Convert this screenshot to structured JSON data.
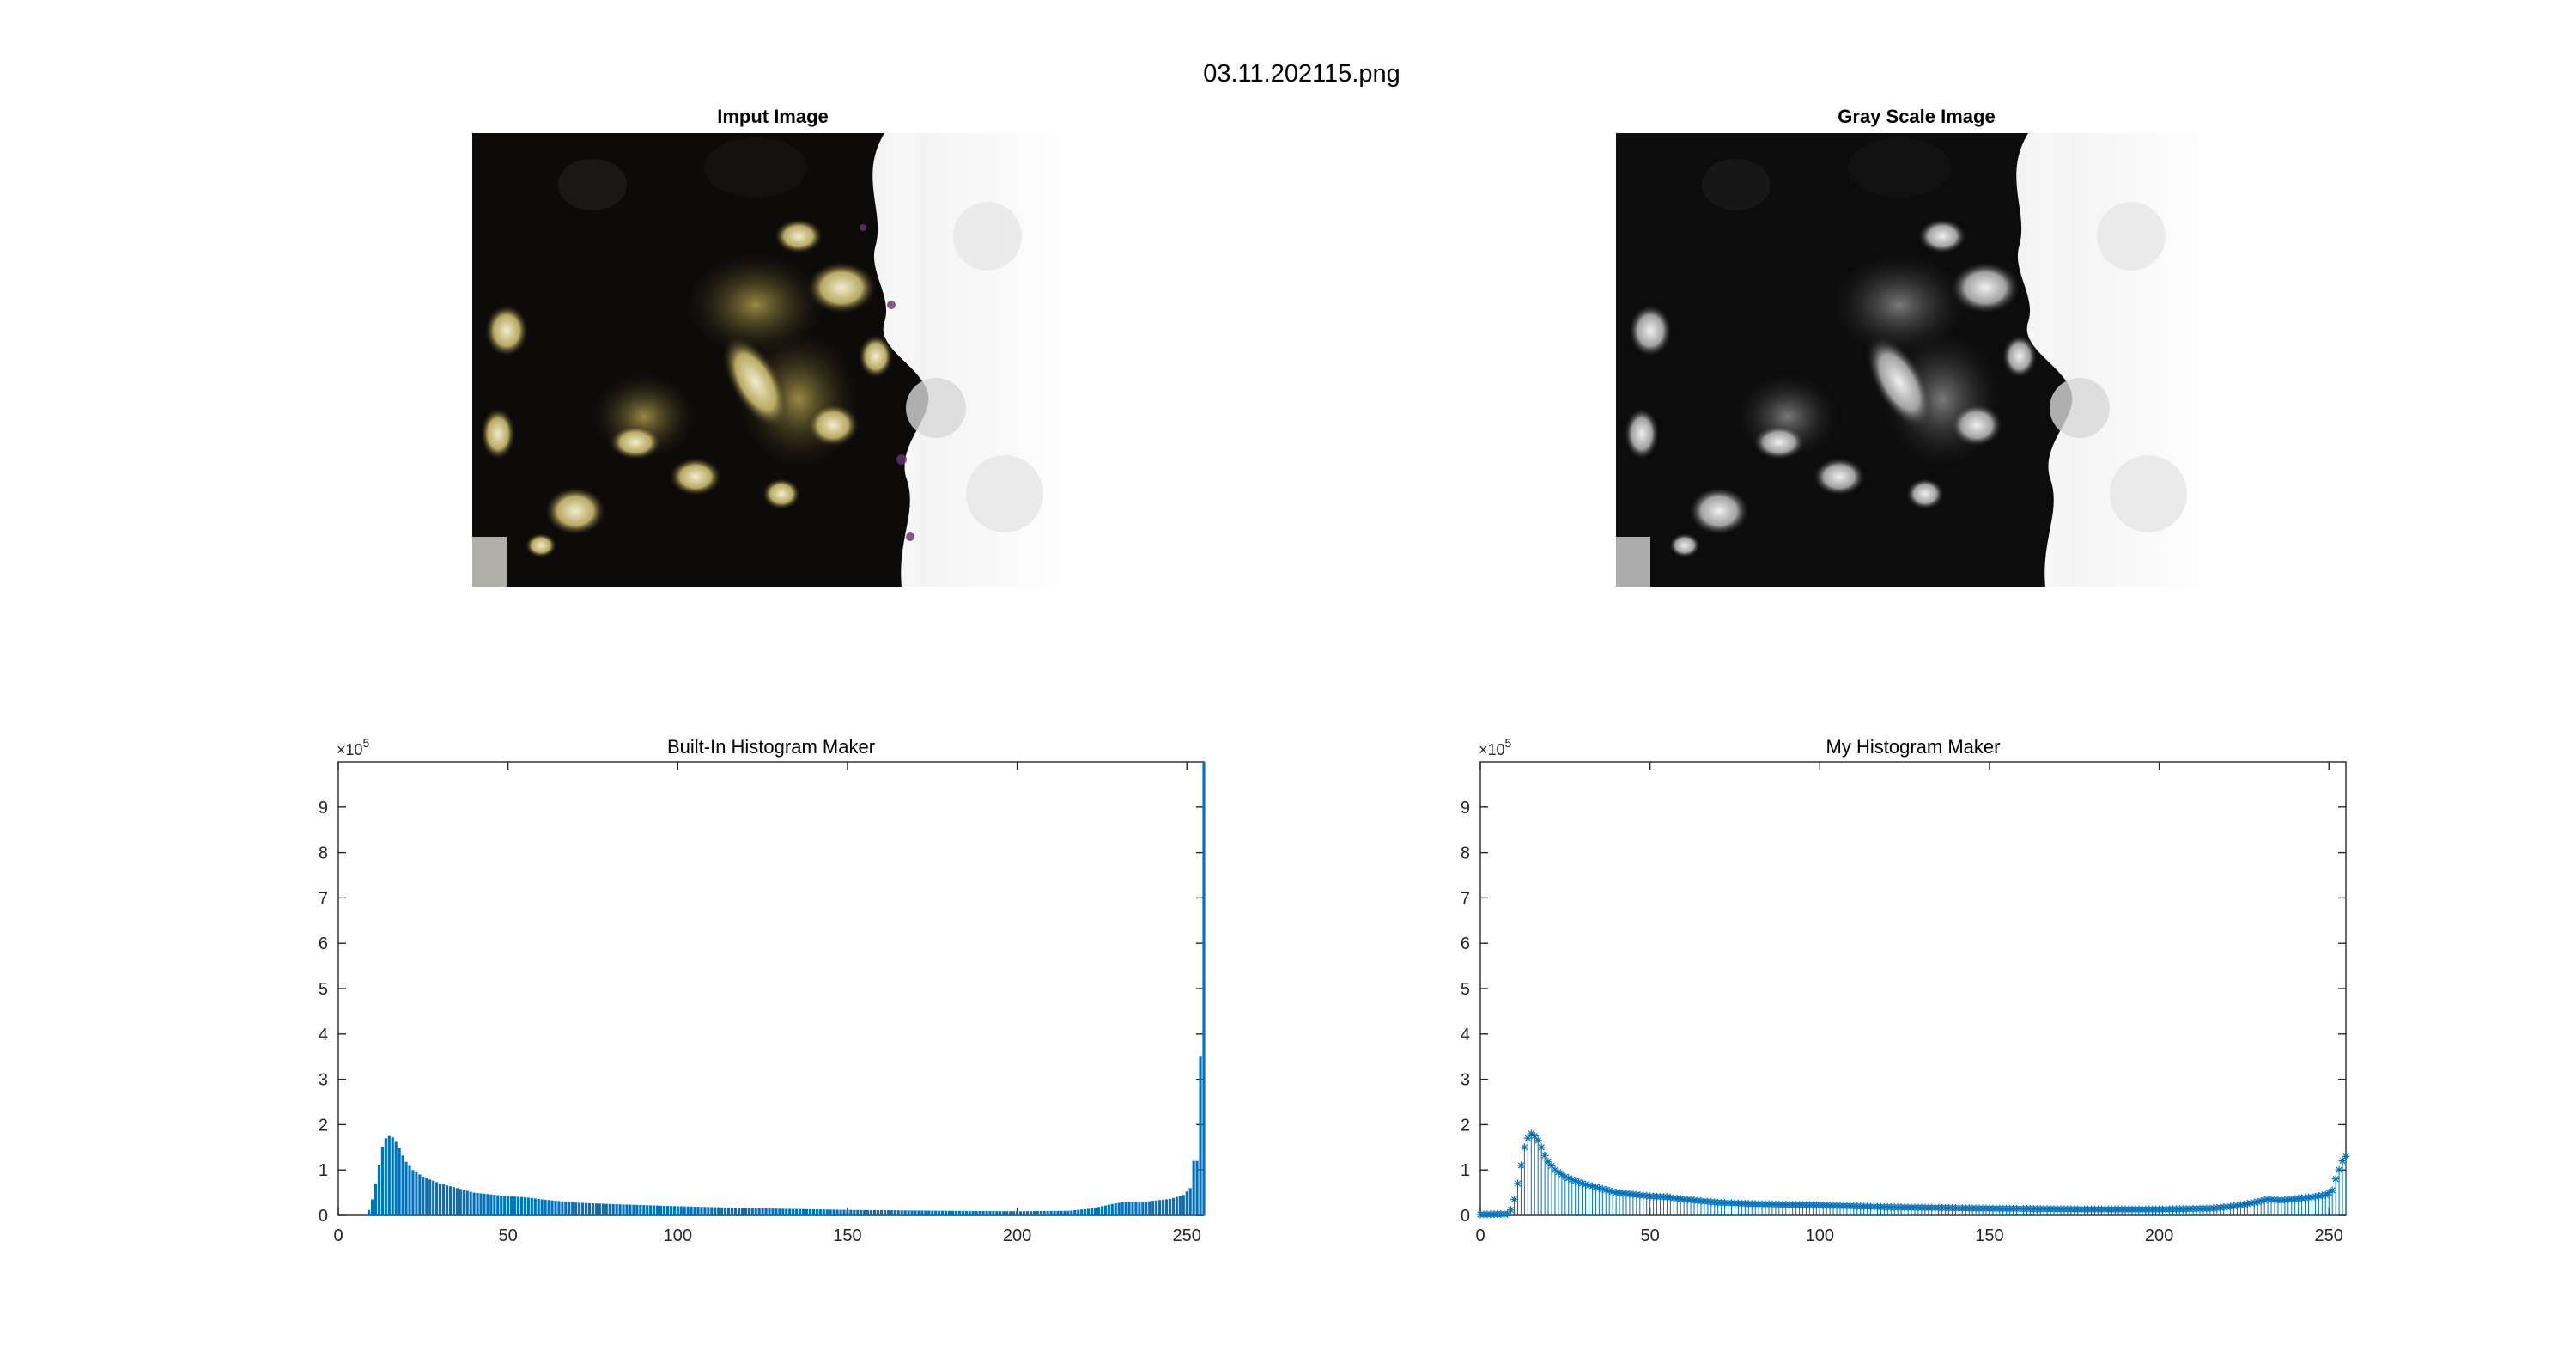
{
  "figure": {
    "title": "03.11.202115.png"
  },
  "images": [
    {
      "title": "Imput Image",
      "style": "color"
    },
    {
      "title": "Gray Scale Image",
      "style": "gray"
    }
  ],
  "colors": {
    "bar": "#0072BD",
    "axis": "#262626",
    "background": "#ffffff"
  },
  "chart_data": [
    {
      "type": "bar",
      "title": "Built-In Histogram Maker",
      "xlabel": "",
      "ylabel": "",
      "xlim": [
        0,
        255
      ],
      "ylim": [
        0,
        1000000
      ],
      "y_exponent_label": "×10",
      "y_exponent": "5",
      "xticks": [
        0,
        50,
        100,
        150,
        200,
        250
      ],
      "yticks": [
        0,
        1,
        2,
        3,
        4,
        5,
        6,
        7,
        8,
        9
      ],
      "grid": false,
      "keypoints": [
        [
          0,
          0
        ],
        [
          8,
          0
        ],
        [
          9,
          12000
        ],
        [
          10,
          35000
        ],
        [
          11,
          70000
        ],
        [
          12,
          110000
        ],
        [
          13,
          150000
        ],
        [
          14,
          170000
        ],
        [
          15,
          175000
        ],
        [
          16,
          172000
        ],
        [
          17,
          162000
        ],
        [
          18,
          148000
        ],
        [
          19,
          132000
        ],
        [
          20,
          118000
        ],
        [
          22,
          100000
        ],
        [
          25,
          85000
        ],
        [
          30,
          70000
        ],
        [
          40,
          50000
        ],
        [
          50,
          42000
        ],
        [
          55,
          40000
        ],
        [
          60,
          35000
        ],
        [
          70,
          28000
        ],
        [
          80,
          25000
        ],
        [
          100,
          20000
        ],
        [
          120,
          16000
        ],
        [
          150,
          12000
        ],
        [
          180,
          10000
        ],
        [
          200,
          9000
        ],
        [
          215,
          10000
        ],
        [
          222,
          15000
        ],
        [
          228,
          25000
        ],
        [
          232,
          30000
        ],
        [
          236,
          28000
        ],
        [
          240,
          32000
        ],
        [
          245,
          36000
        ],
        [
          249,
          45000
        ],
        [
          251,
          60000
        ],
        [
          252,
          120000
        ],
        [
          253,
          120000
        ],
        [
          254,
          350000
        ],
        [
          255,
          1000000
        ]
      ]
    },
    {
      "type": "stem",
      "title": "My Histogram Maker",
      "xlabel": "",
      "ylabel": "",
      "xlim": [
        0,
        255
      ],
      "ylim": [
        0,
        1000000
      ],
      "y_exponent_label": "×10",
      "y_exponent": "5",
      "xticks": [
        0,
        50,
        100,
        150,
        200,
        250
      ],
      "yticks": [
        0,
        1,
        2,
        3,
        4,
        5,
        6,
        7,
        8,
        9
      ],
      "grid": false,
      "keypoints": [
        [
          0,
          2000
        ],
        [
          8,
          3000
        ],
        [
          9,
          12000
        ],
        [
          10,
          35000
        ],
        [
          11,
          70000
        ],
        [
          12,
          110000
        ],
        [
          13,
          150000
        ],
        [
          14,
          170000
        ],
        [
          15,
          180000
        ],
        [
          16,
          175000
        ],
        [
          17,
          165000
        ],
        [
          18,
          150000
        ],
        [
          19,
          132000
        ],
        [
          20,
          118000
        ],
        [
          22,
          100000
        ],
        [
          25,
          85000
        ],
        [
          30,
          70000
        ],
        [
          40,
          50000
        ],
        [
          50,
          42000
        ],
        [
          55,
          40000
        ],
        [
          60,
          35000
        ],
        [
          70,
          28000
        ],
        [
          80,
          25000
        ],
        [
          100,
          22000
        ],
        [
          120,
          18000
        ],
        [
          150,
          15000
        ],
        [
          180,
          13000
        ],
        [
          200,
          13000
        ],
        [
          215,
          15000
        ],
        [
          222,
          20000
        ],
        [
          228,
          28000
        ],
        [
          232,
          35000
        ],
        [
          236,
          33000
        ],
        [
          240,
          36000
        ],
        [
          245,
          40000
        ],
        [
          249,
          45000
        ],
        [
          251,
          55000
        ],
        [
          252,
          80000
        ],
        [
          253,
          100000
        ],
        [
          254,
          120000
        ],
        [
          255,
          130000
        ]
      ]
    }
  ]
}
